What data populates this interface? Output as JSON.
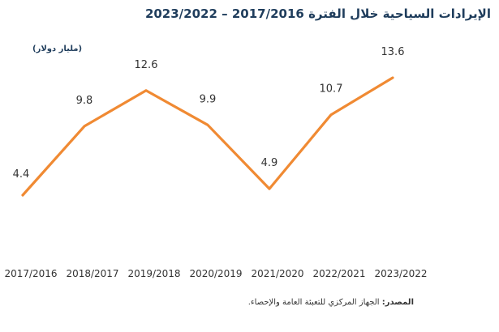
{
  "title": "الإيرادات السياحية خلال الفترة 2017/2016 – 2023/2022",
  "unit_label": "(مليار دولار)",
  "source": {
    "label": "المصدر:",
    "text": " الجهاز المركزي للتعبئة العامة والإحصاء."
  },
  "colors": {
    "line": "#f08a33",
    "title": "#1f3d5c"
  },
  "chart_data": {
    "type": "line",
    "categories": [
      "2017/2016",
      "2018/2017",
      "2019/2018",
      "2020/2019",
      "2021/2020",
      "2022/2021",
      "2023/2022"
    ],
    "series": [
      {
        "values": [
          4.4,
          9.8,
          12.6,
          9.9,
          4.9,
          10.7,
          13.6
        ]
      }
    ],
    "data_labels": true,
    "grid": false,
    "legend": "none"
  }
}
